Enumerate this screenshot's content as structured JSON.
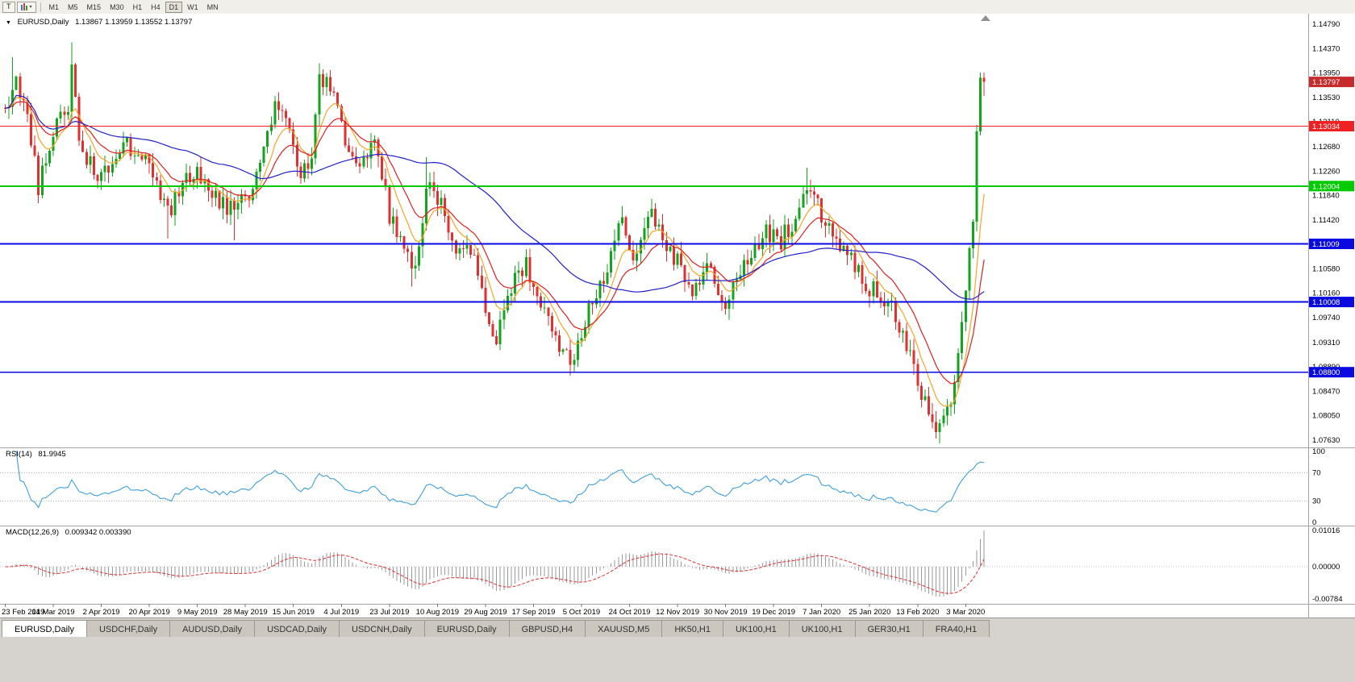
{
  "toolbar": {
    "tool_button": "T",
    "timeframes": [
      "M1",
      "M5",
      "M15",
      "M30",
      "H1",
      "H4",
      "D1",
      "W1",
      "MN"
    ],
    "active_timeframe": "D1"
  },
  "chart": {
    "caption_symbol": "EURUSD,Daily",
    "caption_ohlc": "1.13867 1.13959 1.13552 1.13797",
    "price_axis_labels": [
      "1.14790",
      "1.14370",
      "1.13950",
      "1.13530",
      "1.13110",
      "1.12680",
      "1.12260",
      "1.11840",
      "1.11420",
      "1.11000",
      "1.10580",
      "1.10160",
      "1.09740",
      "1.09310",
      "1.08890",
      "1.08470",
      "1.08050",
      "1.07630"
    ],
    "date_axis_labels": [
      "23 Feb 2019",
      "14 Mar 2019",
      "2 Apr 2019",
      "20 Apr 2019",
      "9 May 2019",
      "28 May 2019",
      "15 Jun 2019",
      "4 Jul 2019",
      "23 Jul 2019",
      "10 Aug 2019",
      "29 Aug 2019",
      "17 Sep 2019",
      "5 Oct 2019",
      "24 Oct 2019",
      "12 Nov 2019",
      "30 Nov 2019",
      "19 Dec 2019",
      "7 Jan 2020",
      "25 Jan 2020",
      "13 Feb 2020",
      "3 Mar 2020"
    ],
    "levels": [
      {
        "price": 1.13034,
        "label": "1.13034",
        "color": "#ee2222",
        "width": 1.4
      },
      {
        "price": 1.12004,
        "label": "1.12004",
        "color": "#00ca00",
        "width": 2
      },
      {
        "price": 1.11009,
        "label": "1.11009",
        "color": "#0a0ae0",
        "width": 1.8
      },
      {
        "price": 1.10008,
        "label": "1.10008",
        "color": "#0a0ae0",
        "width": 1.8
      },
      {
        "price": 1.088,
        "label": "1.08800",
        "color": "#0a0ae0",
        "width": 1.8
      }
    ],
    "current_price": {
      "price": 1.13797,
      "label": "1.13797",
      "bg": "#c62b2b"
    }
  },
  "rsi": {
    "caption_name": "RSI(14)",
    "caption_value": "81.9945",
    "axis_labels": [
      "100",
      "70",
      "30",
      "0"
    ],
    "levels": [
      70,
      30
    ],
    "line_color": "#3f9fdf"
  },
  "macd": {
    "caption_name": "MACD(12,26,9)",
    "caption_value": "0.009342 0.003390",
    "axis_labels": [
      "0.01016",
      "0.00000",
      "-0.00784"
    ],
    "bar_color": "#9a9a9a",
    "signal_color": "#e03030"
  },
  "tabs": [
    "EURUSD,Daily",
    "USDCHF,Daily",
    "AUDUSD,Daily",
    "USDCAD,Daily",
    "USDCNH,Daily",
    "EURUSD,Daily",
    "GBPUSD,H4",
    "XAUUSD,M5",
    "HK50,H1",
    "UK100,H1",
    "UK100,H1",
    "GER30,H1",
    "FRA40,H1"
  ],
  "active_tab_index": 0,
  "colors": {
    "bull": "#12a41c",
    "bear": "#e03030"
  },
  "chart_data": {
    "type": "candlestick",
    "symbol": "EURUSD",
    "timeframe": "Daily",
    "last_ohlc": {
      "open": 1.13867,
      "high": 1.13959,
      "low": 1.13552,
      "close": 1.13797
    },
    "num_candles": 266,
    "days_per_label": 13,
    "y_range": [
      1.0763,
      1.1479
    ],
    "price_step": 0.0042,
    "horizontal_levels": [
      1.13034,
      1.12004,
      1.11009,
      1.10008,
      1.088
    ],
    "anchors": [
      [
        0,
        1.1335
      ],
      [
        3,
        1.1372
      ],
      [
        6,
        1.132
      ],
      [
        9,
        1.1196
      ],
      [
        13,
        1.13
      ],
      [
        17,
        1.134
      ],
      [
        18,
        1.1405
      ],
      [
        20,
        1.1282
      ],
      [
        24,
        1.1222
      ],
      [
        28,
        1.1232
      ],
      [
        32,
        1.128
      ],
      [
        36,
        1.1258
      ],
      [
        40,
        1.123
      ],
      [
        44,
        1.1152
      ],
      [
        48,
        1.1205
      ],
      [
        53,
        1.122
      ],
      [
        58,
        1.1172
      ],
      [
        62,
        1.1155
      ],
      [
        66,
        1.1185
      ],
      [
        70,
        1.1258
      ],
      [
        73,
        1.1332
      ],
      [
        77,
        1.1305
      ],
      [
        80,
        1.1212
      ],
      [
        83,
        1.1262
      ],
      [
        85,
        1.1388
      ],
      [
        88,
        1.1368
      ],
      [
        92,
        1.128
      ],
      [
        96,
        1.1225
      ],
      [
        100,
        1.1272
      ],
      [
        104,
        1.1152
      ],
      [
        107,
        1.1115
      ],
      [
        110,
        1.1048
      ],
      [
        112,
        1.1082
      ],
      [
        114,
        1.1198
      ],
      [
        118,
        1.1168
      ],
      [
        121,
        1.11
      ],
      [
        124,
        1.1095
      ],
      [
        127,
        1.1082
      ],
      [
        130,
        1.0992
      ],
      [
        133,
        1.094
      ],
      [
        137,
        1.1028
      ],
      [
        141,
        1.1065
      ],
      [
        145,
        1.1002
      ],
      [
        148,
        1.0952
      ],
      [
        151,
        1.0908
      ],
      [
        154,
        1.09
      ],
      [
        158,
        1.0985
      ],
      [
        162,
        1.104
      ],
      [
        166,
        1.1148
      ],
      [
        170,
        1.1082
      ],
      [
        174,
        1.1158
      ],
      [
        178,
        1.1115
      ],
      [
        182,
        1.1068
      ],
      [
        186,
        1.1012
      ],
      [
        190,
        1.1068
      ],
      [
        194,
        1.0992
      ],
      [
        198,
        1.105
      ],
      [
        202,
        1.1082
      ],
      [
        206,
        1.1118
      ],
      [
        210,
        1.1108
      ],
      [
        214,
        1.1148
      ],
      [
        217,
        1.1205
      ],
      [
        220,
        1.1172
      ],
      [
        224,
        1.1102
      ],
      [
        228,
        1.1092
      ],
      [
        232,
        1.1032
      ],
      [
        236,
        1.1022
      ],
      [
        240,
        1.0992
      ],
      [
        244,
        1.0932
      ],
      [
        248,
        1.0842
      ],
      [
        252,
        1.0788
      ],
      [
        255,
        1.0812
      ],
      [
        257,
        1.0862
      ],
      [
        259,
        1.0962
      ],
      [
        261,
        1.1085
      ],
      [
        262,
        1.1145
      ],
      [
        263,
        1.128
      ],
      [
        264,
        1.13867
      ],
      [
        265,
        1.13797
      ]
    ],
    "high_overrides": {
      "2": 1.1422,
      "18": 1.1448,
      "85": 1.1412,
      "114": 1.125,
      "217": 1.1232,
      "264": 1.1392
    },
    "low_overrides": {
      "9": 1.1177,
      "44": 1.111,
      "62": 1.1107,
      "110": 1.1027,
      "133": 1.0926,
      "154": 1.0879,
      "252": 1.0778
    },
    "moving_averages": [
      {
        "period": 8,
        "type": "ema",
        "color": "#f7a525"
      },
      {
        "period": 16,
        "type": "ema",
        "color": "#e02020"
      },
      {
        "period": 50,
        "type": "sma",
        "color": "#2121cc"
      }
    ],
    "rsi": {
      "period": 14,
      "last_value": 81.9945
    },
    "macd": {
      "fast": 12,
      "slow": 26,
      "signal": 9,
      "last_main": 0.009342,
      "last_signal": 0.00339
    }
  }
}
